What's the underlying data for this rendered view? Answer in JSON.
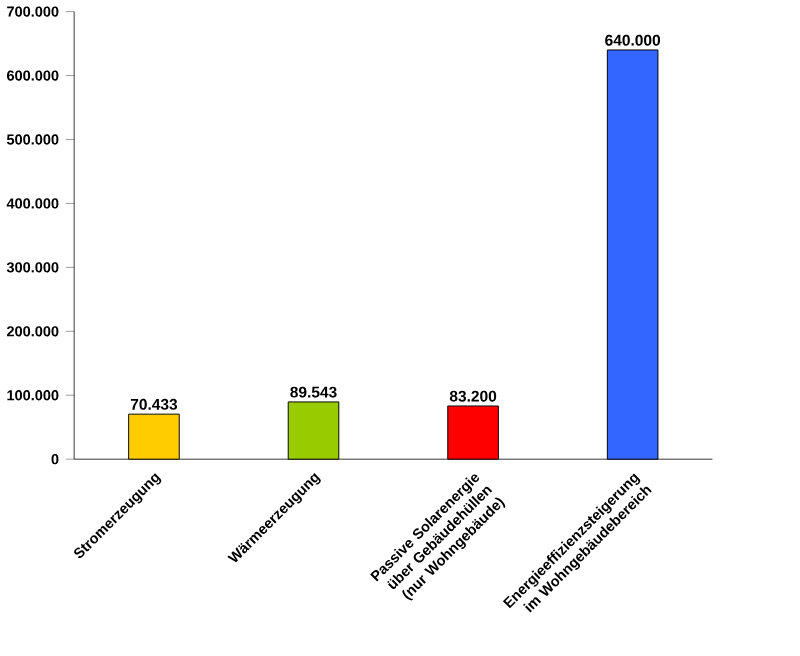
{
  "chart_data": {
    "type": "bar",
    "categories": [
      "Stromerzeugung",
      "Wärmeerzeugung",
      "Passive Solarenergie über Gebäudehüllen (nur Wohngebäude)",
      "Energieeffizienzsteigerung im Wohngebäudebereich"
    ],
    "values": [
      70433,
      89543,
      83200,
      640000
    ],
    "value_labels": [
      "70.433",
      "89.543",
      "83.200",
      "640.000"
    ],
    "colors": [
      "#ffcc00",
      "#99cc00",
      "#ff0000",
      "#3366ff"
    ],
    "ylim": [
      0,
      700000
    ],
    "yticks": [
      {
        "value": 0,
        "label": "0"
      },
      {
        "value": 100000,
        "label": "100.000"
      },
      {
        "value": 200000,
        "label": "200.000"
      },
      {
        "value": 300000,
        "label": "300.000"
      },
      {
        "value": 400000,
        "label": "400.000"
      },
      {
        "value": 500000,
        "label": "500.000"
      },
      {
        "value": 600000,
        "label": "600.000"
      },
      {
        "value": 700000,
        "label": "700.000"
      }
    ],
    "grid": false
  }
}
